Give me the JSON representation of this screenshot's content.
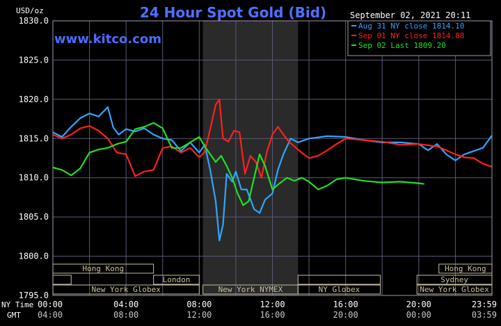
{
  "chart_data": {
    "type": "line",
    "title": "24 Hour Spot Gold (Bid)",
    "watermark": "www.kitco.com",
    "timestamp": "September 02, 2021 20:11",
    "ylabel": "USD/oz",
    "ylim": [
      1795,
      1830
    ],
    "yticks": [
      "1830.0",
      "1825.0",
      "1820.0",
      "1815.0",
      "1810.0",
      "1805.0",
      "1800.0",
      "1795.0"
    ],
    "xlim": [
      0,
      24
    ],
    "x_ticks": [
      {
        "x": 0,
        "ny": "00:00",
        "gmt": "04:00"
      },
      {
        "x": 4,
        "ny": "04:00",
        "gmt": "08:00"
      },
      {
        "x": 8,
        "ny": "08:00",
        "gmt": "12:00"
      },
      {
        "x": 12,
        "ny": "12:00",
        "gmt": "16:00"
      },
      {
        "x": 16,
        "ny": "16:00",
        "gmt": "20:00"
      },
      {
        "x": 20,
        "ny": "20:00",
        "gmt": "00:00"
      },
      {
        "x": 24,
        "ny": "23:59",
        "gmt": "03:59"
      }
    ],
    "x_row_labels": {
      "ny": "NY Time",
      "gmt": "GMT"
    },
    "highlight_band": [
      8.2,
      13.4
    ],
    "grid": true,
    "legend_position": "top-right",
    "colors": {
      "background": "#000000",
      "grid": "#5a5a78",
      "band": "#2a2a2a",
      "title": "#5070ff",
      "text": "#ffffff",
      "sessions": "#c8c0a0"
    },
    "series": [
      {
        "name": "Aug 31 NY close 1814.10",
        "color": "#2fa6ff",
        "x": [
          0,
          0.5,
          1,
          1.5,
          2,
          2.5,
          3,
          3.3,
          3.6,
          4,
          4.5,
          5,
          5.5,
          6,
          6.5,
          7,
          7.5,
          8,
          8.3,
          8.6,
          8.9,
          9.1,
          9.3,
          9.5,
          9.8,
          10,
          10.3,
          10.6,
          11,
          11.3,
          11.6,
          12,
          12.3,
          12.6,
          13,
          13.4,
          14,
          15,
          16,
          17,
          18,
          19,
          20,
          20.5,
          21,
          21.5,
          22,
          22.5,
          23,
          23.5,
          24
        ],
        "y": [
          1815.8,
          1815.2,
          1816.5,
          1817.6,
          1818.2,
          1817.8,
          1819.0,
          1816.4,
          1815.5,
          1816.2,
          1815.9,
          1816.3,
          1815.5,
          1815.0,
          1814.8,
          1813.4,
          1814.5,
          1813.2,
          1814.2,
          1811.0,
          1807.0,
          1802.0,
          1804.0,
          1810.5,
          1809.5,
          1810.8,
          1808.5,
          1808.5,
          1806.0,
          1805.5,
          1807.2,
          1808.0,
          1811.0,
          1813.0,
          1815.0,
          1814.5,
          1815.0,
          1815.3,
          1815.2,
          1814.8,
          1814.5,
          1814.5,
          1814.3,
          1813.5,
          1814.3,
          1813.0,
          1812.2,
          1813.0,
          1813.4,
          1813.8,
          1815.4
        ]
      },
      {
        "name": "Sep 01 NY close 1814.88",
        "color": "#ff2020",
        "x": [
          0,
          0.5,
          1,
          1.5,
          2,
          2.5,
          3,
          3.5,
          4,
          4.5,
          5,
          5.5,
          6,
          6.5,
          7,
          7.5,
          8,
          8.3,
          8.6,
          8.9,
          9.1,
          9.3,
          9.6,
          9.9,
          10.2,
          10.5,
          10.8,
          11.1,
          11.4,
          11.7,
          12,
          12.3,
          12.6,
          12.9,
          13.2,
          13.6,
          14,
          14.5,
          15,
          15.5,
          16,
          17,
          18,
          19,
          20,
          21,
          22,
          22.5,
          23,
          23.5,
          24
        ],
        "y": [
          1815.5,
          1815.0,
          1815.5,
          1816.3,
          1816.6,
          1816.0,
          1815.0,
          1813.2,
          1813.0,
          1810.2,
          1810.8,
          1811.0,
          1813.8,
          1814.0,
          1813.2,
          1813.8,
          1812.6,
          1813.3,
          1816.2,
          1819.3,
          1820.0,
          1815.0,
          1814.6,
          1816.0,
          1815.8,
          1810.5,
          1812.8,
          1812.0,
          1810.0,
          1813.3,
          1815.5,
          1816.5,
          1815.5,
          1814.6,
          1814.0,
          1813.2,
          1812.5,
          1812.8,
          1813.5,
          1814.3,
          1815.0,
          1814.8,
          1814.6,
          1814.2,
          1814.3,
          1814.0,
          1813.0,
          1812.6,
          1812.5,
          1811.8,
          1811.4
        ]
      },
      {
        "name": "Sep 02 Last 1809.20",
        "color": "#22e022",
        "x": [
          0,
          0.5,
          1,
          1.5,
          2,
          2.5,
          3,
          3.5,
          4,
          4.5,
          5,
          5.5,
          6,
          6.5,
          7,
          7.5,
          8,
          8.3,
          8.6,
          8.9,
          9.2,
          9.5,
          9.8,
          10.1,
          10.4,
          10.7,
          11.0,
          11.3,
          11.6,
          12,
          12.4,
          12.8,
          13.2,
          13.6,
          14,
          14.5,
          15,
          15.5,
          16,
          16.5,
          17,
          18,
          19,
          20,
          20.3
        ],
        "y": [
          1811.3,
          1811.0,
          1810.3,
          1811.2,
          1813.2,
          1813.6,
          1813.8,
          1814.3,
          1814.6,
          1816.2,
          1816.5,
          1817.0,
          1816.3,
          1813.8,
          1813.8,
          1814.5,
          1815.2,
          1814.0,
          1813.0,
          1812.0,
          1812.8,
          1811.5,
          1810.0,
          1808.0,
          1806.5,
          1807.0,
          1810.0,
          1813.0,
          1811.5,
          1808.5,
          1809.3,
          1810.0,
          1809.6,
          1810.0,
          1809.5,
          1808.5,
          1809.0,
          1809.8,
          1810.0,
          1809.8,
          1809.6,
          1809.4,
          1809.5,
          1809.3,
          1809.2
        ]
      }
    ],
    "sessions": [
      {
        "label": "Hong Kong",
        "start": 0,
        "end": 5.5,
        "row": 0
      },
      {
        "label": "Hong Kong",
        "start": 21.1,
        "end": 24,
        "row": 0
      },
      {
        "label": "London",
        "start": 0,
        "end": 8.0,
        "row": 1,
        "box_start": 0
      },
      {
        "label": "London",
        "start": 5.5,
        "end": 8.0,
        "row": 1
      },
      {
        "label": "Sydney",
        "start": 19.9,
        "end": 24,
        "row": 1
      },
      {
        "label": "New York Globex",
        "start": 0,
        "end": 8.0,
        "row": 2
      },
      {
        "label": "New York NYMEX",
        "start": 8.2,
        "end": 13.4,
        "row": 2
      },
      {
        "label": "NY Globex",
        "start": 13.4,
        "end": 17.9,
        "row": 2
      },
      {
        "label": "New York Globex",
        "start": 19.9,
        "end": 24,
        "row": 2
      }
    ]
  }
}
